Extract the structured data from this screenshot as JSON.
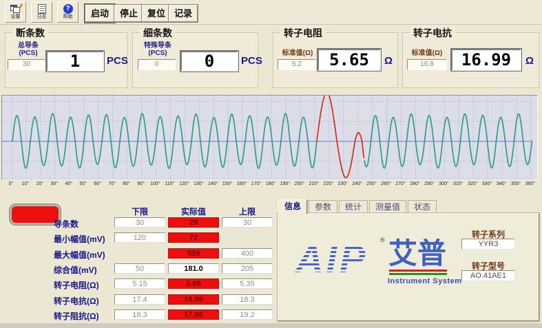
{
  "toolbar": {
    "tools": [
      {
        "icon": "settings-icon",
        "label": "设置"
      },
      {
        "icon": "log-icon",
        "label": "日志"
      },
      {
        "icon": "help-icon",
        "label": "帮助"
      }
    ],
    "buttons": [
      {
        "label": "启动",
        "default": true
      },
      {
        "label": "停止",
        "default": false
      },
      {
        "label": "复位",
        "default": false
      },
      {
        "label": "记录",
        "default": false
      }
    ]
  },
  "panels": [
    {
      "title": "断条数",
      "field_label": "总导条",
      "field_sub": "(PCS)",
      "field_value": "30",
      "value": "1",
      "unit": "PCS"
    },
    {
      "title": "细条数",
      "field_label": "特殊导条",
      "field_sub": "(PCS)",
      "field_value": "0",
      "value": "0",
      "unit": "PCS"
    },
    {
      "title": "转子电阻",
      "field_label": "标准值(Ω)",
      "field_sub": "",
      "field_value": "5.2",
      "value": "5.65",
      "unit": "Ω"
    },
    {
      "title": "转子电抗",
      "field_label": "标准值(Ω)",
      "field_sub": "",
      "field_value": "16.8",
      "value": "16.99",
      "unit": "Ω"
    }
  ],
  "chart_data": {
    "type": "line",
    "title": "rotor bar test waveform",
    "xlabel_unit": "°",
    "x_min": 0,
    "x_max": 360,
    "x_tick_step": 10,
    "cycles": 29,
    "normal_amplitude": 1.0,
    "amplitude_modulation": 0.08,
    "fault_region": {
      "start_deg": 211.5,
      "end_deg": 244.5,
      "features": [
        {
          "deg": 218.4,
          "rel_amp": 1.9,
          "note": "clipped positive spike"
        },
        {
          "deg": 231.7,
          "rel_amp": -1.45,
          "note": "deep trough"
        },
        {
          "deg": 240.4,
          "rel_amp": 0.33,
          "note": "small peak"
        }
      ]
    },
    "colors": {
      "normal": "#2E9C8F",
      "fault": "#CF2B1C",
      "grid_dotted": "#97A6DE",
      "grid_solid": "#7E8ECB",
      "plot_bg": "#DCDDE7"
    },
    "legend": [],
    "grid": "on"
  },
  "results_table": {
    "headers": [
      "下限",
      "实际值",
      "上限"
    ],
    "rows": [
      {
        "label": "导条数",
        "low": "30",
        "actual": "29",
        "high": "30",
        "alarm": true
      },
      {
        "label": "最小幅值(mV)",
        "low": "120",
        "actual": "72",
        "high": "",
        "alarm": true
      },
      {
        "label": "最大幅值(mV)",
        "low": "",
        "actual": "559",
        "high": "400",
        "alarm": true
      },
      {
        "label": "综合值(mV)",
        "low": "50",
        "actual": "181.0",
        "high": "205",
        "alarm": false
      },
      {
        "label": "转子电阻(Ω)",
        "low": "5.15",
        "actual": "5.65",
        "high": "5.35",
        "alarm": true
      },
      {
        "label": "转子电抗(Ω)",
        "low": "17.4",
        "actual": "16.99",
        "high": "18.3",
        "alarm": true
      },
      {
        "label": "转子阻抗(Ω)",
        "low": "18.3",
        "actual": "17.90",
        "high": "19.2",
        "alarm": true
      }
    ],
    "status_lamp_color": "#EE1010"
  },
  "info_panel": {
    "tabs": [
      "信息",
      "参数",
      "统计",
      "测量值",
      "状态"
    ],
    "active_tab": "信息",
    "logo": {
      "text": "AIP",
      "reg": "®",
      "cn": "艾普",
      "sub": "Instrument System",
      "brand_color": "#4766C8"
    },
    "fields": [
      {
        "label": "转子系列",
        "value": "YYR3"
      },
      {
        "label": "转子型号",
        "value": "AO.41AE1"
      }
    ]
  },
  "colors": {
    "window_bg": "#EBE7D3",
    "navy_label": "#16168c",
    "alarm_red": "#ED0E0E",
    "maroon_label": "#6E3B17"
  }
}
